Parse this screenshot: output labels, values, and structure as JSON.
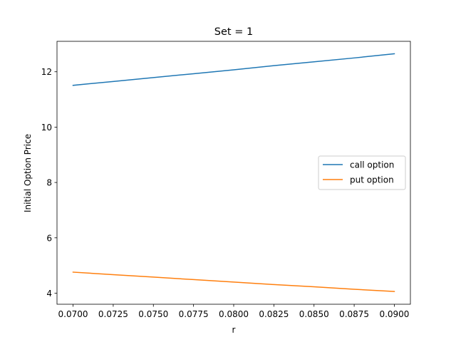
{
  "chart_data": {
    "type": "line",
    "title": "Set = 1",
    "xlabel": "r",
    "ylabel": "Initial Option Price",
    "xlim": [
      0.069,
      0.091
    ],
    "ylim": [
      3.6,
      13.1
    ],
    "xticks": [
      0.07,
      0.0725,
      0.075,
      0.0775,
      0.08,
      0.0825,
      0.085,
      0.0875,
      0.09
    ],
    "xtick_labels": [
      "0.0700",
      "0.0725",
      "0.0750",
      "0.0775",
      "0.0800",
      "0.0825",
      "0.0850",
      "0.0875",
      "0.0900"
    ],
    "yticks": [
      4,
      6,
      8,
      10,
      12
    ],
    "ytick_labels": [
      "4",
      "6",
      "8",
      "10",
      "12"
    ],
    "grid": false,
    "legend_position": "center-right",
    "series": [
      {
        "name": "call option",
        "color": "#1f77b4",
        "x": [
          0.07,
          0.0725,
          0.075,
          0.0775,
          0.08,
          0.0825,
          0.085,
          0.0875,
          0.09
        ],
        "y": [
          11.51,
          11.65,
          11.79,
          11.93,
          12.07,
          12.22,
          12.36,
          12.5,
          12.65
        ]
      },
      {
        "name": "put option",
        "color": "#ff7f0e",
        "x": [
          0.07,
          0.0725,
          0.075,
          0.0775,
          0.08,
          0.0825,
          0.085,
          0.0875,
          0.09
        ],
        "y": [
          4.76,
          4.67,
          4.58,
          4.49,
          4.4,
          4.31,
          4.23,
          4.14,
          4.06
        ]
      }
    ]
  }
}
